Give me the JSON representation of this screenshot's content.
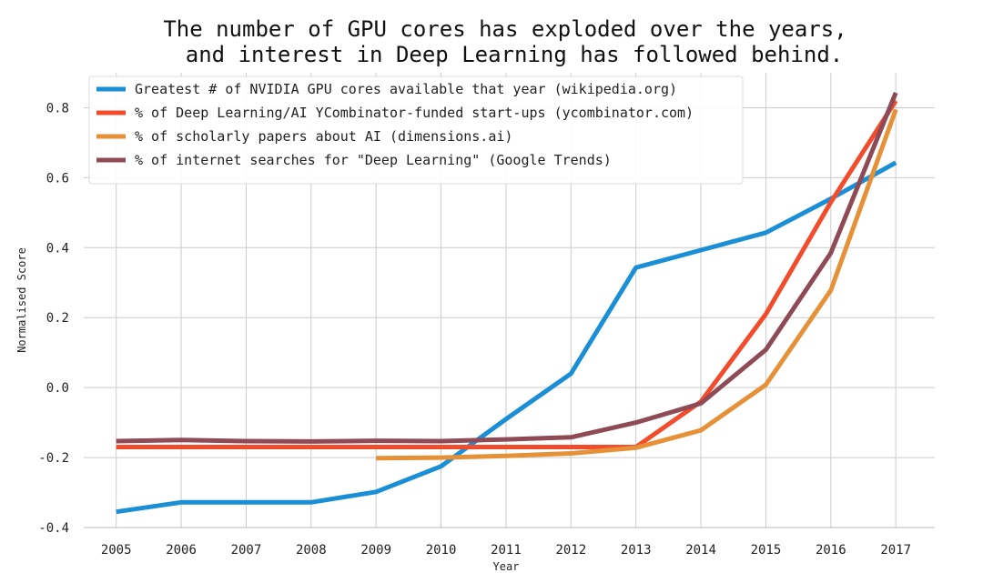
{
  "chart_data": {
    "type": "line",
    "title_lines": [
      "The number of GPU cores has exploded over the years,",
      "and interest in Deep Learning has followed behind."
    ],
    "xlabel": "Year",
    "ylabel": "Normalised Score",
    "x": [
      2005,
      2006,
      2007,
      2008,
      2009,
      2010,
      2011,
      2012,
      2013,
      2014,
      2015,
      2016,
      2017
    ],
    "x_tick_labels": [
      "2005",
      "2006",
      "2007",
      "2008",
      "2009",
      "2010",
      "2011",
      "2012",
      "2013",
      "2014",
      "2015",
      "2016",
      "2017"
    ],
    "y_tick_labels": [
      "-0.4",
      "-0.2",
      "0.0",
      "0.2",
      "0.4",
      "0.6",
      "0.8"
    ],
    "y_ticks": [
      -0.4,
      -0.2,
      0.0,
      0.2,
      0.4,
      0.6,
      0.8
    ],
    "xlim": [
      2004.5,
      2017.6
    ],
    "ylim": [
      -0.4,
      0.9
    ],
    "grid": true,
    "legend_position": "top-left",
    "series": [
      {
        "name": "Greatest # of NVIDIA GPU cores available that year (wikipedia.org)",
        "color": "#1a8fd6",
        "x": [
          2005,
          2006,
          2007,
          2008,
          2009,
          2010,
          2011,
          2012,
          2013,
          2014,
          2015,
          2016,
          2017
        ],
        "values": [
          -0.355,
          -0.328,
          -0.328,
          -0.328,
          -0.298,
          -0.225,
          -0.09,
          0.04,
          0.343,
          0.393,
          0.443,
          0.54,
          0.643
        ]
      },
      {
        "name": "% of Deep Learning/AI YCombinator-funded start-ups (ycombinator.com)",
        "color": "#f24c2c",
        "x": [
          2005,
          2006,
          2007,
          2008,
          2009,
          2010,
          2011,
          2012,
          2013,
          2014,
          2015,
          2016,
          2017
        ],
        "values": [
          -0.17,
          -0.17,
          -0.17,
          -0.17,
          -0.17,
          -0.17,
          -0.17,
          -0.17,
          -0.17,
          -0.04,
          0.21,
          0.53,
          0.82
        ]
      },
      {
        "name": "% of scholarly papers about AI (dimensions.ai)",
        "color": "#e69138",
        "x": [
          2009,
          2010,
          2011,
          2012,
          2013,
          2014,
          2015,
          2016,
          2017
        ],
        "values": [
          -0.202,
          -0.2,
          -0.195,
          -0.188,
          -0.172,
          -0.122,
          0.008,
          0.278,
          0.795
        ]
      },
      {
        "name": "% of internet searches for \"Deep Learning\" (Google Trends)",
        "color": "#8e4a55",
        "x": [
          2005,
          2006,
          2007,
          2008,
          2009,
          2010,
          2011,
          2012,
          2013,
          2014,
          2015,
          2016,
          2017
        ],
        "values": [
          -0.153,
          -0.15,
          -0.153,
          -0.154,
          -0.152,
          -0.153,
          -0.148,
          -0.142,
          -0.1,
          -0.045,
          0.108,
          0.385,
          0.843
        ]
      }
    ]
  }
}
